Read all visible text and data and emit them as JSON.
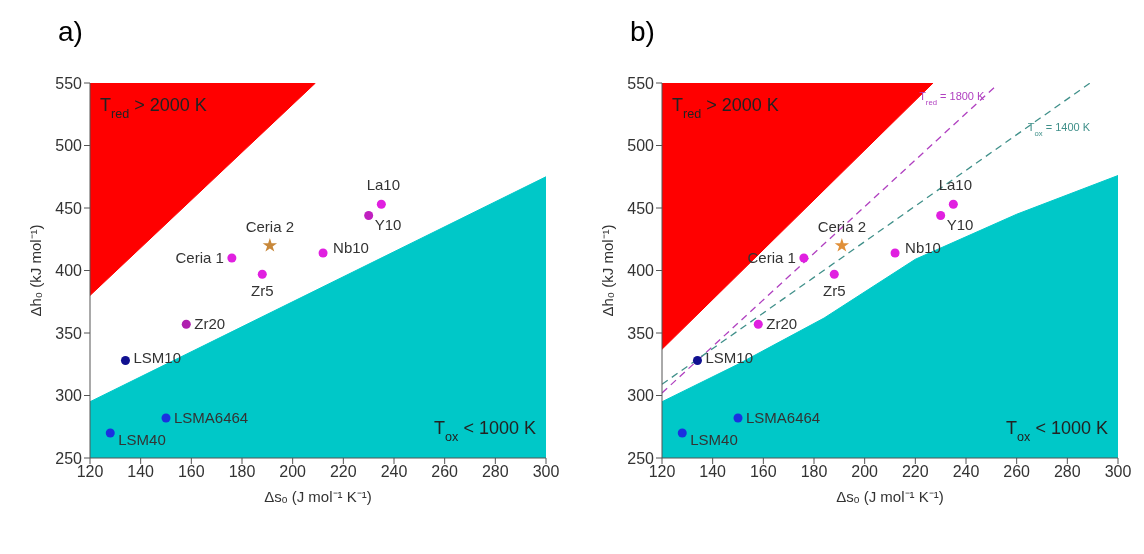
{
  "chart_data": [
    {
      "type": "scatter",
      "title": "a)",
      "xlabel": "Δsₒ (J mol⁻¹ K⁻¹)",
      "ylabel": "Δh₀ (kJ mol⁻¹)",
      "xlim": [
        120,
        300
      ],
      "ylim": [
        250,
        550
      ],
      "xticks": [
        120,
        140,
        160,
        180,
        200,
        220,
        240,
        260,
        280,
        300
      ],
      "yticks": [
        250,
        300,
        350,
        400,
        450,
        500,
        550
      ],
      "grid": false,
      "legend": false,
      "series": [
        {
          "type": "area",
          "x": [
            120,
            209
          ],
          "values": [
            380,
            550
          ],
          "color": "#ff0000"
        },
        {
          "type": "area",
          "x": [
            120,
            300
          ],
          "values": [
            295,
            475
          ],
          "color": "#00c8c8"
        },
        {
          "marker": "circle",
          "x": [
            128,
            150,
            134,
            158,
            176,
            188,
            212,
            230,
            235
          ],
          "values": [
            270,
            282,
            328,
            357,
            410,
            397,
            414,
            444,
            453
          ],
          "colors": [
            "#1a30e0",
            "#1a30e0",
            "#101090",
            "#b020b0",
            "#e020e0",
            "#e020e0",
            "#e020e0",
            "#c020c0",
            "#e020e0"
          ]
        },
        {
          "type": "scatter",
          "marker": "star",
          "x": [
            191
          ],
          "values": [
            420
          ],
          "color": "#c8883a"
        }
      ],
      "annotations": [
        {
          "text": "LSM40",
          "x": 128,
          "y": 270
        },
        {
          "text": "LSMA6464",
          "x": 150,
          "y": 282
        },
        {
          "text": "LSM10",
          "x": 134,
          "y": 328
        },
        {
          "text": "Zr20",
          "x": 158,
          "y": 357
        },
        {
          "text": "Ceria 1",
          "x": 176,
          "y": 410
        },
        {
          "text": "Zr5",
          "x": 188,
          "y": 397
        },
        {
          "text": "Nb10",
          "x": 212,
          "y": 414
        },
        {
          "text": "Y10",
          "x": 230,
          "y": 444
        },
        {
          "text": "La10",
          "x": 235,
          "y": 453
        },
        {
          "text": "Ceria 2",
          "x": 191,
          "y": 420
        },
        "T$_{red}$ > 2000 K",
        "T$_{ox}$ < 1000 K"
      ]
    },
    {
      "type": "scatter",
      "title": "b)",
      "xlabel": "Δsₒ (J mol⁻¹ K⁻¹)",
      "ylabel": "Δh₀ (kJ mol⁻¹)",
      "xlim": [
        120,
        300
      ],
      "ylim": [
        250,
        550
      ],
      "xticks": [
        120,
        140,
        160,
        180,
        200,
        220,
        240,
        260,
        280,
        300
      ],
      "yticks": [
        250,
        300,
        350,
        400,
        450,
        500,
        550
      ],
      "grid": false,
      "legend": false,
      "series": [
        {
          "type": "area",
          "x": [
            120,
            227
          ],
          "values": [
            337,
            550
          ],
          "color": "#ff0000"
        },
        {
          "type": "area",
          "x": [
            120,
            150,
            184,
            220,
            260,
            300
          ],
          "values": [
            295,
            325,
            362,
            409,
            445,
            476
          ],
          "color": "#00c8c8"
        },
        {
          "type": "line",
          "line_style": "dashed",
          "marker": "none",
          "x": [
            120,
            252
          ],
          "values": [
            302,
            548
          ],
          "color": "#b040c0"
        },
        {
          "type": "line",
          "line_style": "dashed",
          "marker": "none",
          "x": [
            120,
            289
          ],
          "values": [
            309,
            550
          ],
          "color": "#40908a"
        },
        {
          "marker": "circle",
          "x": [
            128,
            150,
            134,
            158,
            176,
            188,
            212,
            230,
            235
          ],
          "values": [
            270,
            282,
            328,
            357,
            410,
            397,
            414,
            444,
            453
          ],
          "colors": [
            "#1a30e0",
            "#1a30e0",
            "#101090",
            "#e020e0",
            "#e020e0",
            "#e020e0",
            "#e020e0",
            "#e020e0",
            "#e020e0"
          ]
        },
        {
          "type": "scatter",
          "marker": "star",
          "x": [
            191
          ],
          "values": [
            420
          ],
          "color": "#e0903a"
        }
      ],
      "annotations": [
        {
          "text": "LSM40",
          "x": 128,
          "y": 270
        },
        {
          "text": "LSMA6464",
          "x": 150,
          "y": 282
        },
        {
          "text": "LSM10",
          "x": 134,
          "y": 328
        },
        {
          "text": "Zr20",
          "x": 158,
          "y": 357
        },
        {
          "text": "Ceria 1",
          "x": 176,
          "y": 410
        },
        {
          "text": "Zr5",
          "x": 188,
          "y": 397
        },
        {
          "text": "Nb10",
          "x": 212,
          "y": 414
        },
        {
          "text": "Y10",
          "x": 230,
          "y": 444
        },
        {
          "text": "La10",
          "x": 235,
          "y": 453
        },
        {
          "text": "Ceria 2",
          "x": 191,
          "y": 420
        },
        "T$_{red}$ > 2000 K",
        "T$_{ox}$ < 1000 K",
        "T$_{red}$ = 1800 K",
        "T$_{ox}$ = 1400 K"
      ]
    }
  ]
}
